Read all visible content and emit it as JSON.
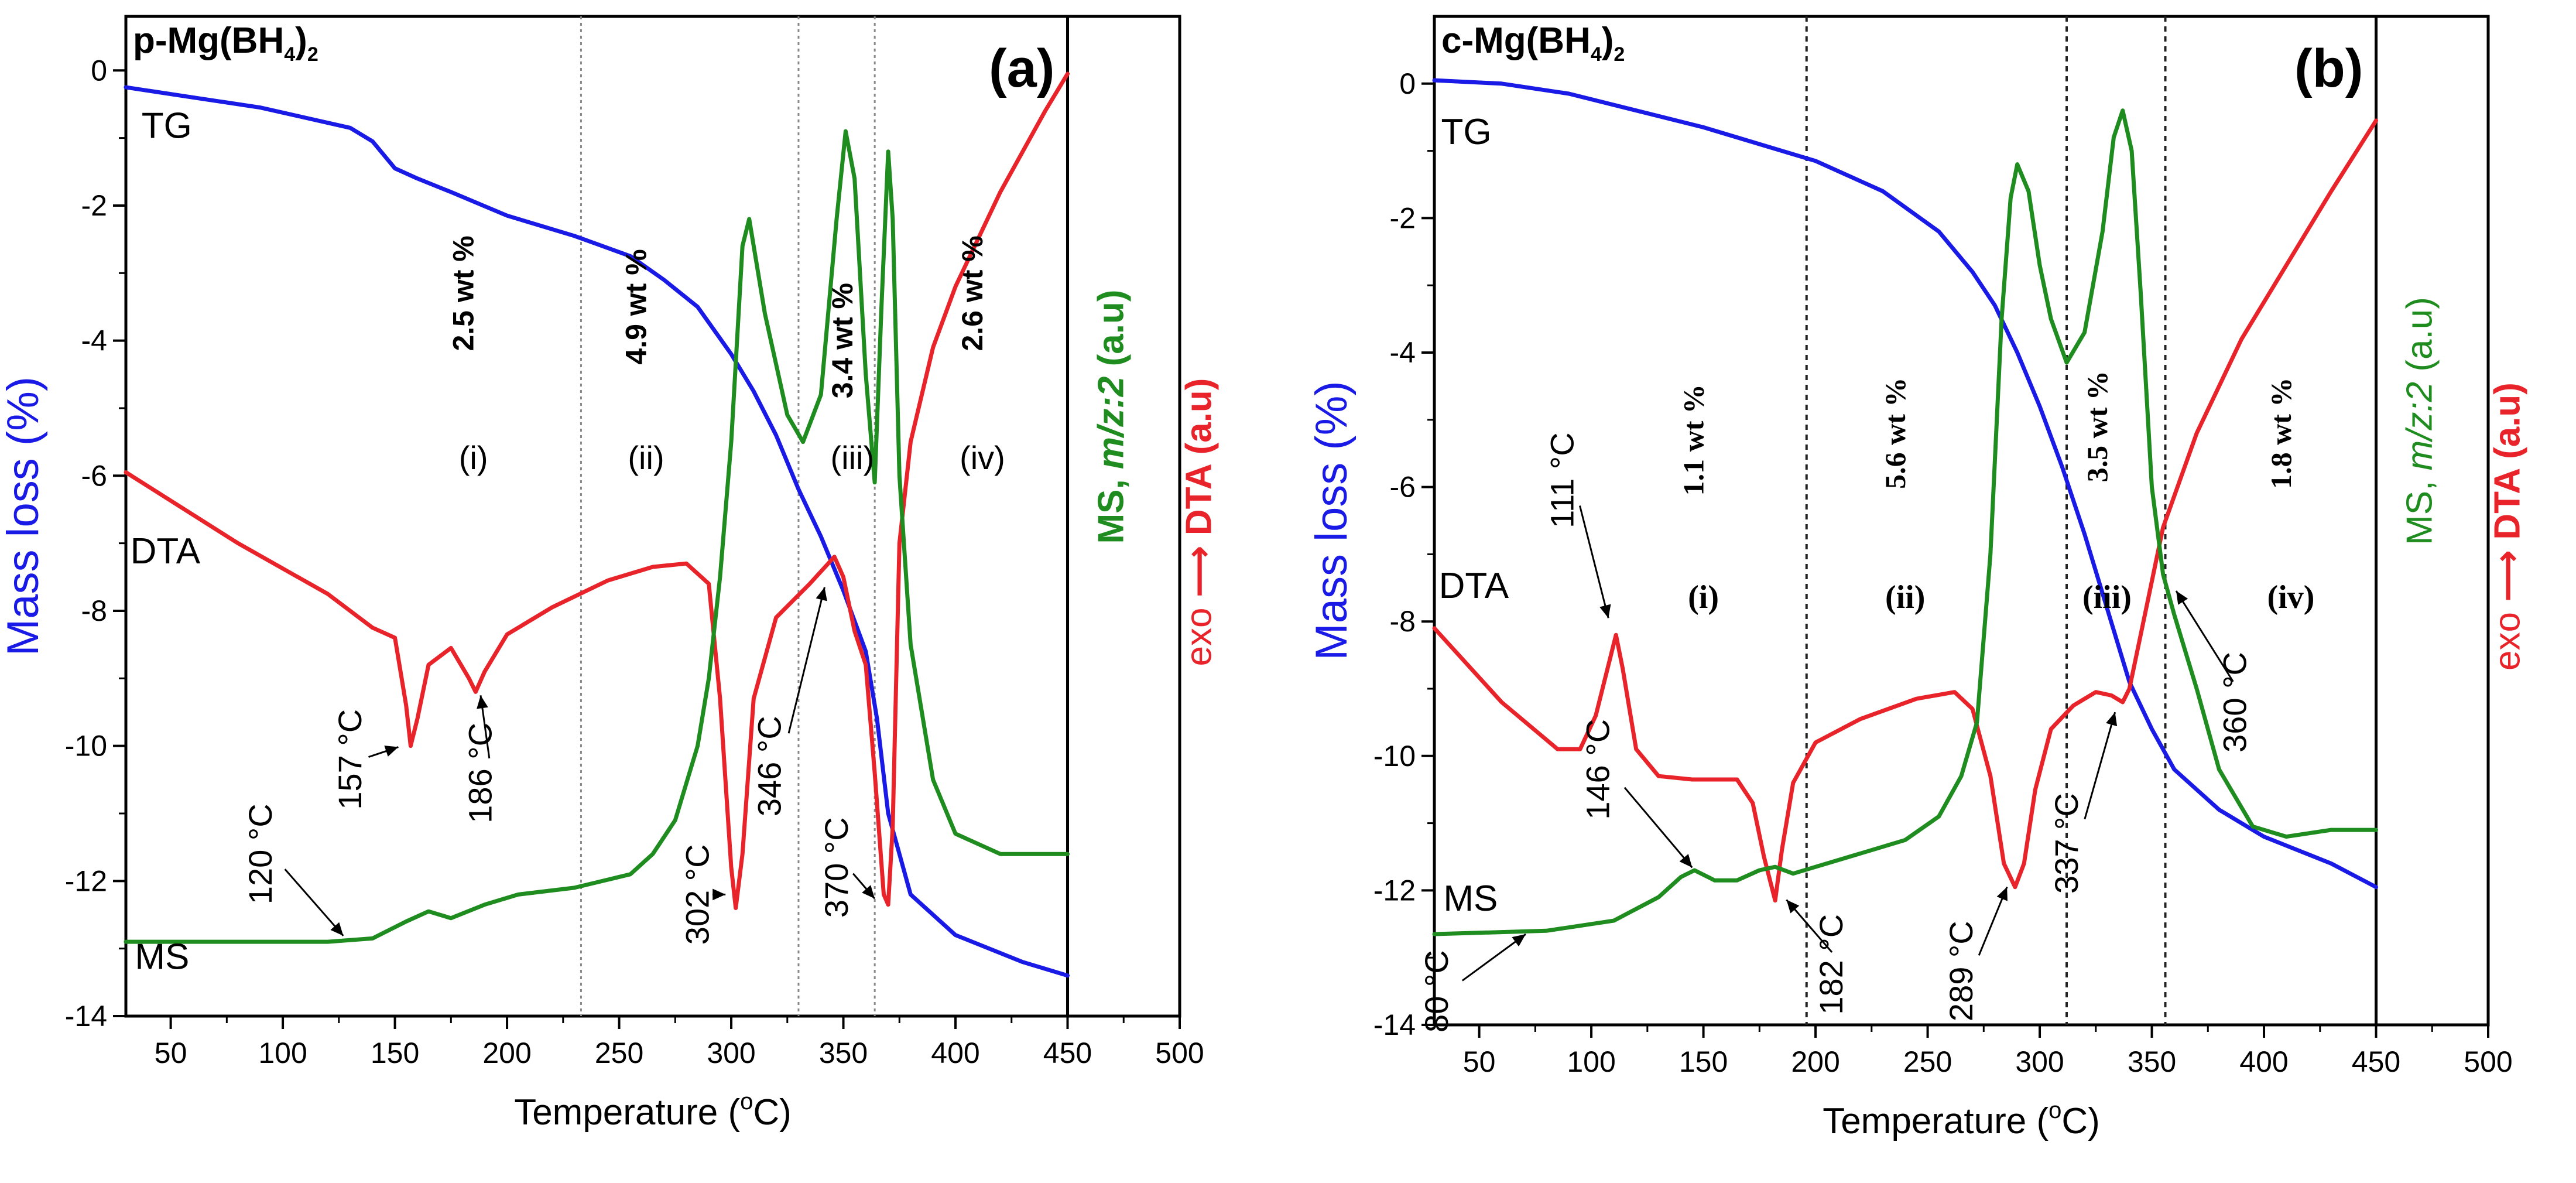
{
  "chart_data": [
    {
      "type": "line",
      "panel_label": "(a)",
      "sample": "p-Mg(BH4)2",
      "title_parts": {
        "pre": "p-Mg(BH",
        "sub1": "4",
        "mid": ")",
        "sub2": "2"
      },
      "xlabel": "Temperature (°C)",
      "xlabel_parts": {
        "pre": "Temperature (",
        "sup": "o",
        "post": "C)"
      },
      "ylabel": "Mass loss (%)",
      "right_labels": {
        "ms": "MS, ",
        "ms_italic": "m/z:2",
        "ms_unit": " (a.u)",
        "exo": "exo",
        "arrow": "⟶",
        "dta": "DTA (a.u)"
      },
      "xlim": [
        30,
        500
      ],
      "ylim": [
        -14,
        0.8
      ],
      "frame_xmax": 450,
      "x_ticks": [
        50,
        100,
        150,
        200,
        250,
        300,
        350,
        400,
        450,
        500
      ],
      "y_ticks": [
        0,
        -2,
        -4,
        -6,
        -8,
        -10,
        -12,
        -14
      ],
      "series": [
        {
          "name": "TG",
          "color": "#1a1ae6",
          "x": [
            30,
            60,
            90,
            110,
            130,
            140,
            150,
            160,
            175,
            200,
            230,
            255,
            270,
            285,
            300,
            310,
            320,
            330,
            340,
            350,
            360,
            365,
            370,
            380,
            400,
            430,
            450
          ],
          "y": [
            -0.25,
            -0.4,
            -0.55,
            -0.7,
            -0.85,
            -1.05,
            -1.45,
            -1.6,
            -1.8,
            -2.15,
            -2.45,
            -2.75,
            -3.1,
            -3.5,
            -4.2,
            -4.75,
            -5.4,
            -6.2,
            -6.9,
            -7.7,
            -8.6,
            -9.6,
            -11.0,
            -12.2,
            -12.8,
            -13.2,
            -13.4
          ]
        },
        {
          "name": "DTA",
          "color": "#e8232a",
          "x": [
            30,
            80,
            120,
            140,
            150,
            155,
            157,
            160,
            165,
            175,
            183,
            186,
            190,
            200,
            220,
            245,
            265,
            280,
            290,
            295,
            300,
            302,
            305,
            310,
            320,
            335,
            346,
            350,
            355,
            360,
            364,
            368,
            370,
            372,
            375,
            380,
            390,
            400,
            420,
            440,
            450
          ],
          "y": [
            -5.95,
            -7.0,
            -7.75,
            -8.25,
            -8.4,
            -9.4,
            -10.0,
            -9.6,
            -8.8,
            -8.55,
            -9.0,
            -9.2,
            -8.9,
            -8.35,
            -7.95,
            -7.55,
            -7.35,
            -7.3,
            -7.6,
            -9.3,
            -11.8,
            -12.4,
            -11.6,
            -9.3,
            -8.1,
            -7.6,
            -7.2,
            -7.5,
            -8.3,
            -8.8,
            -10.4,
            -12.2,
            -12.35,
            -11.2,
            -7.0,
            -5.5,
            -4.1,
            -3.2,
            -1.8,
            -0.6,
            -0.05
          ]
        },
        {
          "name": "MS",
          "color": "#1e8c1e",
          "x": [
            30,
            80,
            120,
            140,
            155,
            165,
            175,
            190,
            205,
            230,
            255,
            265,
            275,
            285,
            290,
            295,
            300,
            305,
            308,
            315,
            325,
            332,
            340,
            347,
            351,
            355,
            360,
            364,
            367,
            370,
            372,
            375,
            380,
            390,
            400,
            420,
            450
          ],
          "y": [
            -12.9,
            -12.9,
            -12.9,
            -12.85,
            -12.6,
            -12.45,
            -12.55,
            -12.35,
            -12.2,
            -12.1,
            -11.9,
            -11.6,
            -11.1,
            -10.0,
            -9.0,
            -7.5,
            -5.5,
            -2.6,
            -2.2,
            -3.6,
            -5.1,
            -5.5,
            -4.8,
            -2.2,
            -0.9,
            -1.6,
            -4.5,
            -6.1,
            -3.5,
            -1.2,
            -2.2,
            -6.0,
            -8.5,
            -10.5,
            -11.3,
            -11.6,
            -11.6
          ]
        }
      ],
      "curve_labels": [
        {
          "text": "TG",
          "color": "#1a1ae6",
          "x": 37,
          "y": -1.0
        },
        {
          "text": "DTA",
          "color": "#e8232a",
          "x": 32,
          "y": -7.3
        },
        {
          "text": "MS",
          "color": "#1e8c1e",
          "x": 34,
          "y": -13.3
        }
      ],
      "temp_annotations": [
        {
          "text": "120 °C",
          "lx": 95,
          "ly": -11.6,
          "tx": 128,
          "ty": -12.85
        },
        {
          "text": "157 °C",
          "lx": 135,
          "ly": -10.2,
          "tx": 153,
          "ty": -10.0
        },
        {
          "text": "186 °C",
          "lx": 193,
          "ly": -10.4,
          "tx": 188,
          "ty": -9.2
        },
        {
          "text": "302 °C",
          "lx": 290,
          "ly": -12.2,
          "tx": 299,
          "ty": -12.2
        },
        {
          "text": "346 °C",
          "lx": 322,
          "ly": -10.3,
          "tx": 342,
          "ty": -7.6
        },
        {
          "text": "370 °C",
          "lx": 352,
          "ly": -11.8,
          "tx": 365,
          "ty": -12.3
        }
      ],
      "regions": [
        {
          "wt": "2.5 wt %",
          "roman": "(i)",
          "x": 185,
          "wt_y": -3.3,
          "r_y": -5.9
        },
        {
          "wt": "4.9 wt %",
          "roman": "(ii)",
          "x": 262,
          "wt_y": -3.5,
          "r_y": -5.9
        },
        {
          "wt": "3.4 wt %",
          "roman": "(iii)",
          "x": 354,
          "wt_y": -4.0,
          "r_y": -5.9
        },
        {
          "wt": "2.6 wt %",
          "roman": "(iv)",
          "x": 412,
          "wt_y": -3.3,
          "r_y": -5.9
        }
      ],
      "vlines": [
        233,
        330,
        364
      ],
      "wt_serif": false
    },
    {
      "type": "line",
      "panel_label": "(b)",
      "sample": "c-Mg(BH4)2",
      "title_parts": {
        "pre": "c-Mg(BH",
        "sub1": "4",
        "mid": ")",
        "sub2": "2"
      },
      "xlabel": "Temperature (°C)",
      "xlabel_parts": {
        "pre": "Temperature (",
        "sup": "o",
        "post": "C)"
      },
      "ylabel": "Mass loss (%)",
      "right_labels": {
        "ms": "MS, ",
        "ms_italic": "m/z:2",
        "ms_unit": " (a.u)",
        "exo": "exo",
        "arrow": "⟶",
        "dta": "DTA (a.u)"
      },
      "xlim": [
        30,
        500
      ],
      "ylim": [
        -14,
        1.0
      ],
      "frame_xmax": 450,
      "x_ticks": [
        50,
        100,
        150,
        200,
        250,
        300,
        350,
        400,
        450,
        500
      ],
      "y_ticks": [
        0,
        -2,
        -4,
        -6,
        -8,
        -10,
        -12,
        -14
      ],
      "series": [
        {
          "name": "TG",
          "color": "#1a1ae6",
          "x": [
            30,
            60,
            90,
            120,
            150,
            180,
            200,
            230,
            255,
            270,
            280,
            290,
            300,
            310,
            320,
            330,
            340,
            350,
            360,
            380,
            400,
            430,
            450
          ],
          "y": [
            0.05,
            0.0,
            -0.15,
            -0.4,
            -0.65,
            -0.95,
            -1.15,
            -1.6,
            -2.2,
            -2.8,
            -3.3,
            -4.0,
            -4.8,
            -5.7,
            -6.7,
            -7.8,
            -8.9,
            -9.6,
            -10.2,
            -10.8,
            -11.2,
            -11.6,
            -11.95
          ]
        },
        {
          "name": "DTA",
          "color": "#e8232a",
          "x": [
            30,
            60,
            85,
            95,
            102,
            108,
            111,
            114,
            120,
            130,
            145,
            165,
            172,
            177,
            182,
            185,
            190,
            200,
            220,
            245,
            262,
            270,
            278,
            284,
            289,
            293,
            298,
            305,
            315,
            325,
            332,
            337,
            340,
            345,
            355,
            370,
            390,
            410,
            430,
            450
          ],
          "y": [
            -8.1,
            -9.2,
            -9.9,
            -9.9,
            -9.4,
            -8.6,
            -8.2,
            -8.7,
            -9.9,
            -10.3,
            -10.35,
            -10.35,
            -10.7,
            -11.5,
            -12.15,
            -11.4,
            -10.4,
            -9.8,
            -9.45,
            -9.15,
            -9.05,
            -9.3,
            -10.3,
            -11.6,
            -11.95,
            -11.6,
            -10.5,
            -9.6,
            -9.25,
            -9.05,
            -9.1,
            -9.2,
            -9.0,
            -8.2,
            -6.6,
            -5.2,
            -3.8,
            -2.7,
            -1.6,
            -0.55
          ]
        },
        {
          "name": "MS",
          "color": "#1e8c1e",
          "x": [
            30,
            80,
            110,
            130,
            140,
            146,
            155,
            165,
            175,
            182,
            190,
            200,
            220,
            240,
            255,
            265,
            272,
            278,
            283,
            287,
            290,
            295,
            300,
            305,
            312,
            320,
            328,
            333,
            337,
            341,
            345,
            350,
            355,
            360,
            370,
            380,
            395,
            410,
            430,
            450
          ],
          "y": [
            -12.65,
            -12.6,
            -12.45,
            -12.1,
            -11.8,
            -11.7,
            -11.85,
            -11.85,
            -11.7,
            -11.65,
            -11.75,
            -11.65,
            -11.45,
            -11.25,
            -10.9,
            -10.3,
            -9.5,
            -7.0,
            -3.5,
            -1.7,
            -1.2,
            -1.6,
            -2.7,
            -3.5,
            -4.15,
            -3.7,
            -2.2,
            -0.8,
            -0.4,
            -1.0,
            -3.1,
            -6.0,
            -7.3,
            -7.9,
            -9.0,
            -10.2,
            -11.05,
            -11.2,
            -11.1,
            -11.1
          ]
        }
      ],
      "curve_labels": [
        {
          "text": "TG",
          "color": "#1a1ae6",
          "x": 33,
          "y": -0.9
        },
        {
          "text": "DTA",
          "color": "#e8232a",
          "x": 32,
          "y": -7.65
        },
        {
          "text": "MS",
          "color": "#1e8c1e",
          "x": 34,
          "y": -12.3
        }
      ],
      "temp_annotations": [
        {
          "text": "111 °C",
          "lx": 92,
          "ly": -5.9,
          "tx": 108,
          "ty": -8.0
        },
        {
          "text": "146 °C",
          "lx": 108,
          "ly": -10.2,
          "tx": 146,
          "ty": -11.7
        },
        {
          "text": "80 °C",
          "lx": 36,
          "ly": -13.5,
          "tx": 72,
          "ty": -12.62
        },
        {
          "text": "182 °C",
          "lx": 212,
          "ly": -13.1,
          "tx": 186,
          "ty": -12.1
        },
        {
          "text": "289 °C",
          "lx": 270,
          "ly": -13.2,
          "tx": 286,
          "ty": -11.9
        },
        {
          "text": "337 °C",
          "lx": 317,
          "ly": -11.3,
          "tx": 334,
          "ty": -9.3
        },
        {
          "text": "360 °C",
          "lx": 392,
          "ly": -9.2,
          "tx": 360,
          "ty": -7.5
        }
      ],
      "regions": [
        {
          "wt": "1.1 wt %",
          "roman": "(i)",
          "x": 150,
          "wt_y": -5.3,
          "r_y": -7.8
        },
        {
          "wt": "5.6 wt %",
          "roman": "(ii)",
          "x": 240,
          "wt_y": -5.2,
          "r_y": -7.8
        },
        {
          "wt": "3.5 wt %",
          "roman": "(iii)",
          "x": 330,
          "wt_y": -5.1,
          "r_y": -7.8
        },
        {
          "wt": "1.8 wt %",
          "roman": "(iv)",
          "x": 412,
          "wt_y": -5.2,
          "r_y": -7.8
        }
      ],
      "vlines": [
        196,
        312,
        356
      ],
      "wt_serif": true
    }
  ]
}
